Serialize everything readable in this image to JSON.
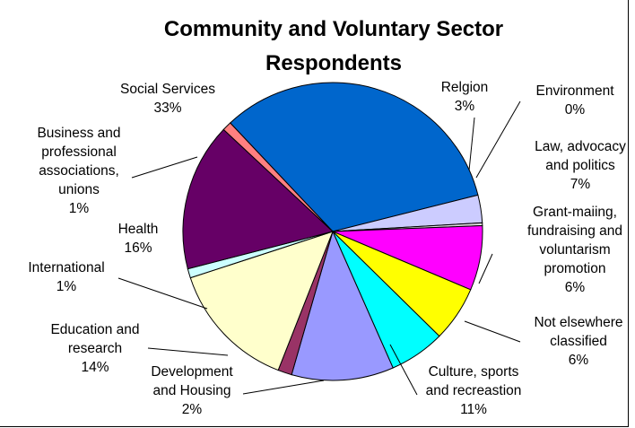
{
  "chart_data": {
    "type": "pie",
    "title": "Community and Voluntary Sector Respondents",
    "title_lines": [
      "Community and Voluntary Sector",
      "Respondents"
    ],
    "legend": "none",
    "slices": [
      {
        "label_lines": [
          "Social Services",
          "33%"
        ],
        "value": 33,
        "percent_label": "33%",
        "color": "#0066CC"
      },
      {
        "label_lines": [
          "Relgion",
          "3%"
        ],
        "value": 3,
        "percent_label": "3%",
        "color": "#CCCCFF"
      },
      {
        "label_lines": [
          "Environment",
          "0%"
        ],
        "value": 0.3,
        "percent_label": "0%",
        "color": "#DDDDDD"
      },
      {
        "label_lines": [
          "Law, advocacy",
          "and politics",
          "7%"
        ],
        "value": 7,
        "percent_label": "7%",
        "color": "#FF00FF"
      },
      {
        "label_lines": [
          "Grant-maiing,",
          "fundraising and",
          "voluntarism",
          "promotion",
          "6%"
        ],
        "value": 6,
        "percent_label": "6%",
        "color": "#FFFF00"
      },
      {
        "label_lines": [
          "Not elsewhere",
          "classified",
          "6%"
        ],
        "value": 6,
        "percent_label": "6%",
        "color": "#00FFFF"
      },
      {
        "label_lines": [
          "Culture, sports",
          "and recreastion",
          "11%"
        ],
        "value": 11,
        "percent_label": "11%",
        "color": "#9999FF"
      },
      {
        "label_lines": [
          "Development",
          "and Housing",
          "2%"
        ],
        "value": 1.5,
        "percent_label": "2%",
        "color": "#993366"
      },
      {
        "label_lines": [
          "Education and",
          "research",
          "14%"
        ],
        "value": 14,
        "percent_label": "14%",
        "color": "#FFFFCC"
      },
      {
        "label_lines": [
          "International",
          "1%"
        ],
        "value": 1,
        "percent_label": "1%",
        "color": "#CCFFFF"
      },
      {
        "label_lines": [
          "Health",
          "16%"
        ],
        "value": 16,
        "percent_label": "16%",
        "color": "#660066"
      },
      {
        "label_lines": [
          "Business and",
          "professional",
          "associations,",
          "unions",
          "1%"
        ],
        "value": 1,
        "percent_label": "1%",
        "color": "#FF8080"
      }
    ]
  }
}
